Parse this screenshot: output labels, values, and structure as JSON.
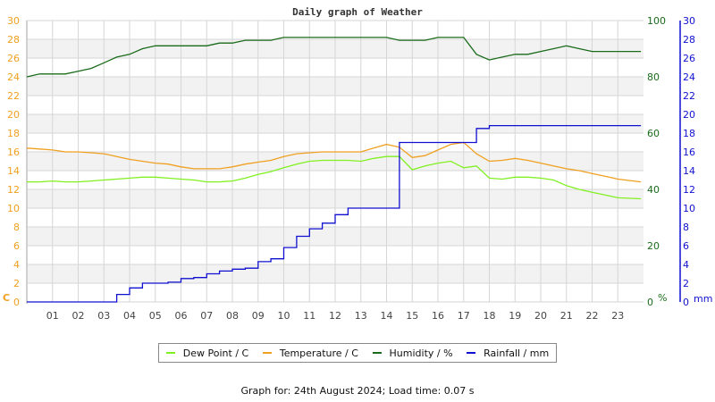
{
  "chart_data": {
    "type": "line",
    "title": "Daily graph of Weather",
    "xlabel": "",
    "x_ticks": [
      "01",
      "02",
      "03",
      "04",
      "05",
      "06",
      "07",
      "08",
      "09",
      "10",
      "11",
      "12",
      "13",
      "14",
      "15",
      "16",
      "17",
      "18",
      "19",
      "20",
      "21",
      "22",
      "23"
    ],
    "x_hours": [
      0,
      0.5,
      1,
      1.5,
      2,
      2.5,
      3,
      3.5,
      4,
      4.5,
      5,
      5.5,
      6,
      6.5,
      7,
      7.5,
      8,
      8.5,
      9,
      9.5,
      10,
      10.5,
      11,
      11.5,
      12,
      12.5,
      13,
      13.5,
      14,
      14.5,
      15,
      15.5,
      16,
      16.5,
      17,
      17.5,
      18,
      18.5,
      19,
      19.5,
      20,
      20.5,
      21,
      21.5,
      22,
      22.5,
      23,
      23.9
    ],
    "axes": {
      "left": {
        "label": "C",
        "ylim": [
          0,
          30
        ],
        "ticks": [
          0,
          2,
          4,
          6,
          8,
          10,
          12,
          14,
          16,
          18,
          20,
          22,
          24,
          26,
          28,
          30
        ],
        "color": "#f0a020"
      },
      "humidity": {
        "label": "%",
        "ylim": [
          0,
          100
        ],
        "ticks": [
          0,
          20,
          40,
          60,
          80,
          100
        ],
        "color": "#1a6b1a"
      },
      "rainfall": {
        "label": "mm",
        "ylim": [
          0,
          30
        ],
        "ticks": [
          0,
          2,
          4,
          6,
          8,
          10,
          12,
          14,
          16,
          18,
          20,
          22,
          24,
          26,
          28,
          30
        ],
        "color": "#1010d0"
      }
    },
    "grid": true,
    "legend_position": "bottom",
    "series": [
      {
        "name": "Dew Point / C",
        "axis": "left",
        "color": "#80f020",
        "values": [
          12.8,
          12.8,
          12.9,
          12.8,
          12.8,
          12.9,
          13.0,
          13.1,
          13.2,
          13.3,
          13.3,
          13.2,
          13.1,
          13.0,
          12.8,
          12.8,
          12.9,
          13.2,
          13.6,
          13.9,
          14.3,
          14.7,
          15.0,
          15.1,
          15.1,
          15.1,
          15.0,
          15.3,
          15.5,
          15.5,
          14.1,
          14.5,
          14.8,
          15.0,
          14.3,
          14.5,
          13.2,
          13.1,
          13.3,
          13.3,
          13.2,
          13.0,
          12.4,
          12.0,
          11.7,
          11.4,
          11.1,
          11.0
        ]
      },
      {
        "name": "Temperature / C",
        "axis": "left",
        "color": "#f0a020",
        "values": [
          16.4,
          16.3,
          16.2,
          16.0,
          16.0,
          15.9,
          15.8,
          15.5,
          15.2,
          15.0,
          14.8,
          14.7,
          14.4,
          14.2,
          14.2,
          14.2,
          14.4,
          14.7,
          14.9,
          15.1,
          15.5,
          15.8,
          15.9,
          16.0,
          16.0,
          16.0,
          16.0,
          16.4,
          16.8,
          16.5,
          15.4,
          15.6,
          16.2,
          16.8,
          17.0,
          15.8,
          15.0,
          15.1,
          15.3,
          15.1,
          14.8,
          14.5,
          14.2,
          14.0,
          13.7,
          13.4,
          13.1,
          12.8
        ]
      },
      {
        "name": "Humidity / %",
        "axis": "humidity",
        "color": "#1a6b1a",
        "values": [
          80,
          81,
          81,
          81,
          82,
          83,
          85,
          87,
          88,
          90,
          91,
          91,
          91,
          91,
          91,
          92,
          92,
          93,
          93,
          93,
          94,
          94,
          94,
          94,
          94,
          94,
          94,
          94,
          94,
          93,
          93,
          93,
          94,
          94,
          94,
          88,
          86,
          87,
          88,
          88,
          89,
          90,
          91,
          90,
          89,
          89,
          89,
          89
        ]
      },
      {
        "name": "Rainfall / mm",
        "axis": "rainfall",
        "color": "#1010d0",
        "values": [
          0,
          0,
          0,
          0,
          0,
          0,
          0,
          0.8,
          1.5,
          2.0,
          2.0,
          2.1,
          2.5,
          2.6,
          3.0,
          3.3,
          3.5,
          3.6,
          4.3,
          4.6,
          5.8,
          7.0,
          7.8,
          8.4,
          9.3,
          10.0,
          10.0,
          10.0,
          10.0,
          17.0,
          17.0,
          17.0,
          17.0,
          17.0,
          17.0,
          18.5,
          18.8,
          18.8,
          18.8,
          18.8,
          18.8,
          18.8,
          18.8,
          18.8,
          18.8,
          18.8,
          18.8,
          18.8
        ]
      }
    ]
  },
  "footer": {
    "text": "Graph for: 24th August 2024; Load time: 0.07 s"
  }
}
